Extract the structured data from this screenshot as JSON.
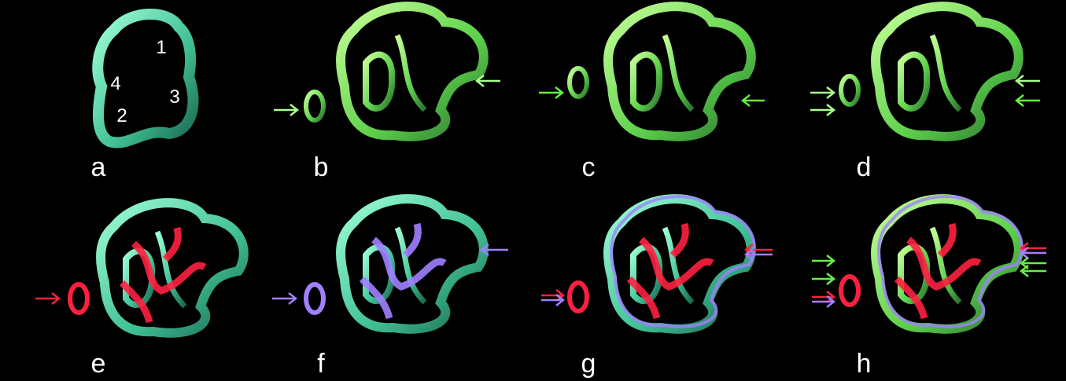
{
  "panel_labels": [
    "a",
    "b",
    "c",
    "d",
    "e",
    "f",
    "g",
    "h"
  ],
  "region_numbers": [
    "1",
    "4",
    "3",
    "2"
  ]
}
